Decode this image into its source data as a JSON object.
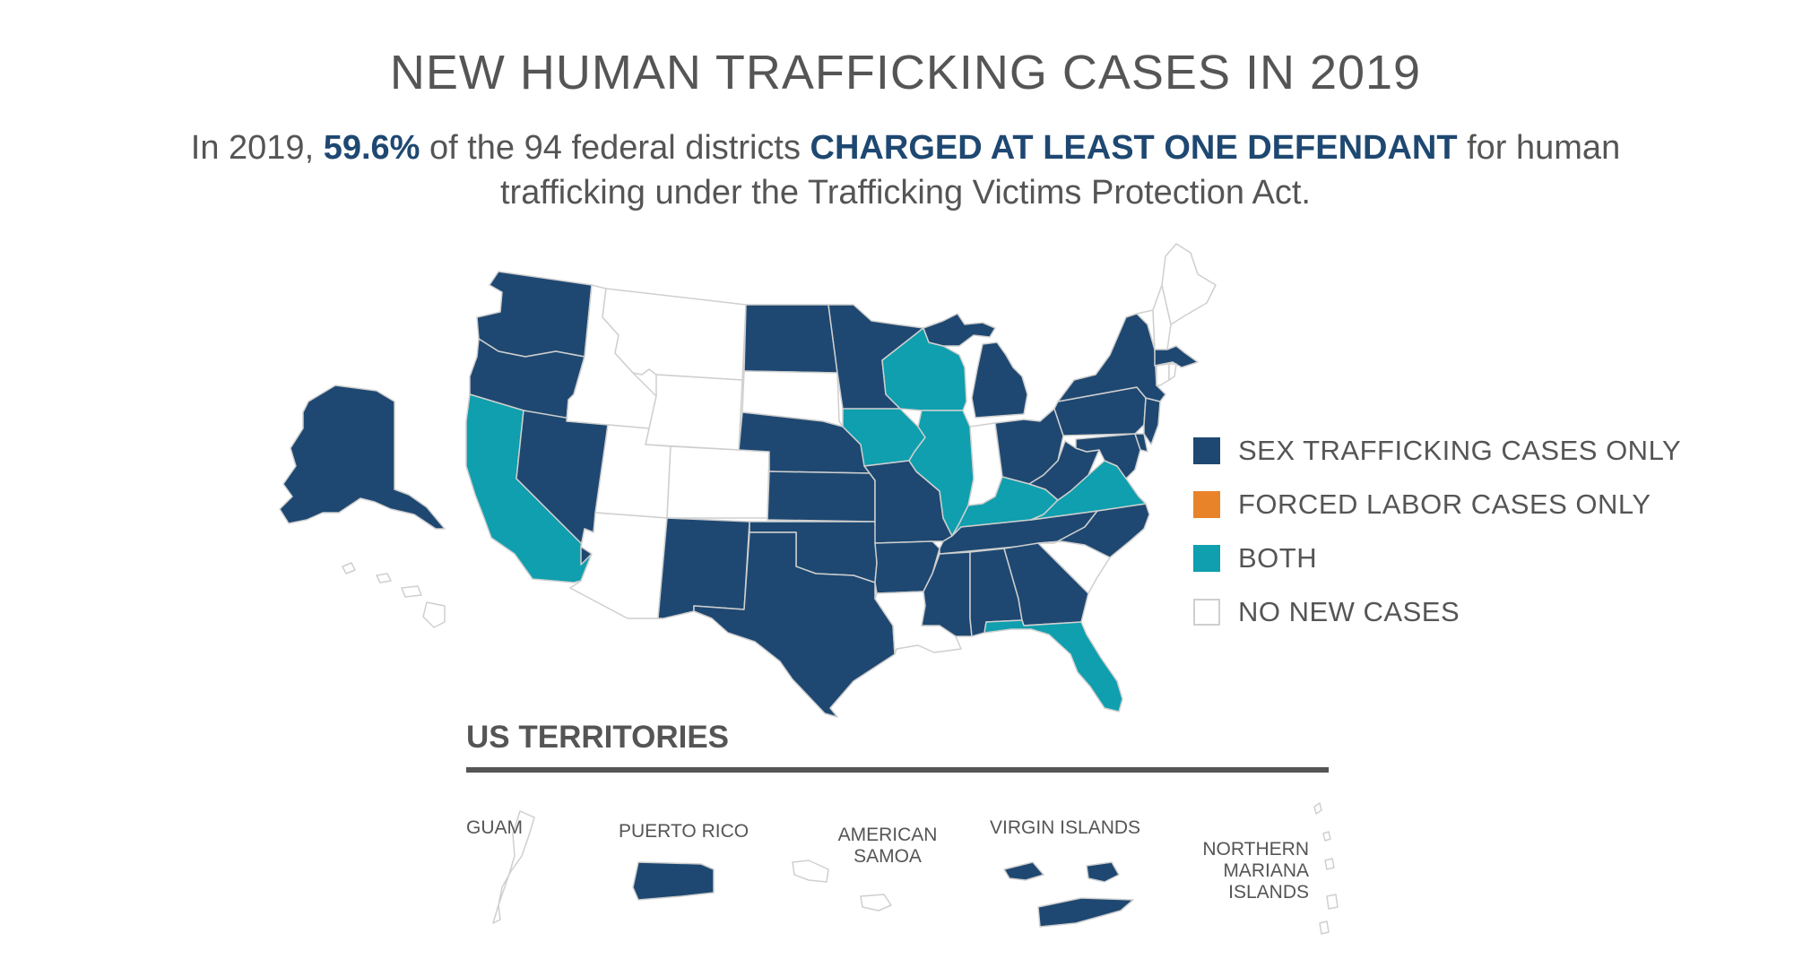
{
  "title": "NEW HUMAN TRAFFICKING CASES IN 2019",
  "subtitle": {
    "p1": "In 2019, ",
    "pct": "59.6%",
    "p2": " of the 94 federal districts ",
    "emph": "CHARGED AT LEAST ONE DEFENDANT",
    "p3": " for human trafficking under the Trafficking Victims Protection Act."
  },
  "colors": {
    "sex_only": "#1e4871",
    "labor_only": "#e8832a",
    "both": "#0f9fae",
    "none": "#ffffff",
    "border": "#cfcfcf"
  },
  "legend": [
    {
      "label": "SEX TRAFFICKING CASES ONLY",
      "key": "sex_only"
    },
    {
      "label": "FORCED LABOR CASES ONLY",
      "key": "labor_only"
    },
    {
      "label": "BOTH",
      "key": "both"
    },
    {
      "label": "NO NEW CASES",
      "key": "none"
    }
  ],
  "territories": {
    "title": "US TERRITORIES",
    "items": [
      {
        "label": "GUAM",
        "status": "none"
      },
      {
        "label": "PUERTO RICO",
        "status": "sex_only"
      },
      {
        "label": "AMERICAN SAMOA",
        "status": "none"
      },
      {
        "label": "VIRGIN ISLANDS",
        "status": "sex_only"
      },
      {
        "label": "NORTHERN MARIANA ISLANDS",
        "status": "none"
      }
    ]
  },
  "states": {
    "WA": "sex_only",
    "OR": "sex_only",
    "CA": "both",
    "NV": "sex_only",
    "ID": "none",
    "MT": "none",
    "WY": "none",
    "UT": "none",
    "AZ": "none",
    "CO": "none",
    "NM": "sex_only",
    "ND": "sex_only",
    "SD": "none",
    "NE": "sex_only",
    "KS": "sex_only",
    "OK": "sex_only",
    "TX": "sex_only",
    "MN": "sex_only",
    "IA": "both",
    "MO": "sex_only",
    "AR": "sex_only",
    "LA": "none",
    "WI": "both",
    "IL": "both",
    "MI": "sex_only",
    "IN": "none",
    "OH": "sex_only",
    "KY": "both",
    "TN": "sex_only",
    "MS": "sex_only",
    "AL": "sex_only",
    "GA": "sex_only",
    "FL": "both",
    "SC": "none",
    "NC": "sex_only",
    "VA": "both",
    "WV": "sex_only",
    "PA": "sex_only",
    "NY": "sex_only",
    "VT": "none",
    "NH": "none",
    "ME": "none",
    "MA": "sex_only",
    "RI": "none",
    "CT": "none",
    "NJ": "sex_only",
    "DE": "sex_only",
    "MD": "sex_only",
    "AK": "sex_only",
    "HI": "none"
  }
}
